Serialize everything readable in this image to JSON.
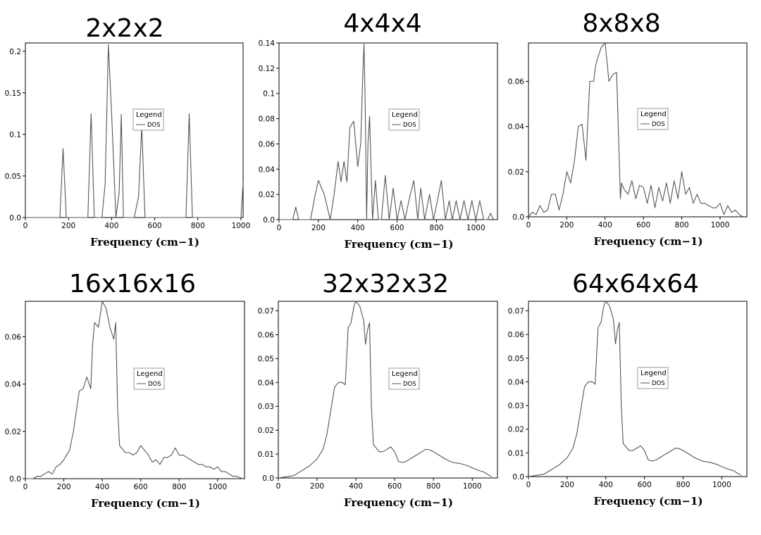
{
  "chart_data": [
    {
      "type": "line",
      "title": "2x2x2",
      "xlabel": "Frequency (cm−1)",
      "ylabel": "",
      "xlim": [
        0,
        1010
      ],
      "ylim": [
        0,
        0.21
      ],
      "xticks": [
        0,
        200,
        400,
        600,
        800,
        1000
      ],
      "yticks": [
        0.0,
        0.05,
        0.1,
        0.15,
        0.2
      ],
      "ytick_labels": [
        "0.0",
        "0.05",
        "0.1",
        "0.15",
        "0.2"
      ],
      "legend": {
        "title": "Legend",
        "entries": [
          "DOS"
        ],
        "position": "center-right"
      },
      "series": [
        {
          "name": "DOS",
          "x": [
            0,
            160,
            175,
            190,
            290,
            305,
            320,
            355,
            370,
            385,
            400,
            420,
            435,
            445,
            455,
            505,
            525,
            540,
            555,
            745,
            760,
            775,
            1000,
            1010
          ],
          "y": [
            0,
            0,
            0.083,
            0,
            0,
            0.125,
            0,
            0,
            0.04,
            0.208,
            0.125,
            0,
            0.03,
            0.124,
            0,
            0,
            0.025,
            0.11,
            0,
            0,
            0.125,
            0,
            0,
            0.042
          ]
        }
      ]
    },
    {
      "type": "line",
      "title": "4x4x4",
      "xlabel": "Frequency (cm−1)",
      "ylabel": "",
      "xlim": [
        0,
        1110
      ],
      "ylim": [
        0,
        0.14
      ],
      "xticks": [
        0,
        200,
        400,
        600,
        800,
        1000
      ],
      "yticks": [
        0,
        0.02,
        0.04,
        0.06,
        0.08,
        0.1,
        0.12,
        0.14
      ],
      "ytick_labels": [
        "0.0",
        "0.02",
        "0.04",
        "0.06",
        "0.08",
        "0.1",
        "0.12",
        "0.14"
      ],
      "legend": {
        "title": "Legend",
        "entries": [
          "DOS"
        ],
        "position": "center-right"
      },
      "series": [
        {
          "name": "DOS",
          "x": [
            0,
            70,
            85,
            100,
            160,
            180,
            200,
            230,
            245,
            260,
            280,
            300,
            315,
            330,
            345,
            360,
            380,
            400,
            415,
            425,
            432,
            438,
            445,
            452,
            460,
            475,
            490,
            505,
            520,
            540,
            560,
            580,
            600,
            620,
            640,
            660,
            685,
            705,
            720,
            740,
            765,
            785,
            805,
            825,
            845,
            865,
            880,
            900,
            920,
            940,
            960,
            980,
            1000,
            1020,
            1040,
            1060,
            1075,
            1090
          ],
          "y": [
            0,
            0,
            0.01,
            0,
            0,
            0.017,
            0.031,
            0.02,
            0.01,
            0,
            0.02,
            0.046,
            0.03,
            0.046,
            0.03,
            0.073,
            0.078,
            0.042,
            0.06,
            0.112,
            0.14,
            0.09,
            0,
            0.06,
            0.082,
            0,
            0.031,
            0,
            0,
            0.035,
            0,
            0.025,
            0,
            0.015,
            0,
            0.015,
            0.031,
            0,
            0.025,
            0,
            0.02,
            0,
            0.015,
            0.031,
            0,
            0.015,
            0,
            0.015,
            0,
            0.015,
            0,
            0.015,
            0,
            0.015,
            0,
            0,
            0.005,
            0
          ]
        }
      ]
    },
    {
      "type": "line",
      "title": "8x8x8",
      "xlabel": "Frequency (cm−1)",
      "ylabel": "",
      "xlim": [
        0,
        1140
      ],
      "ylim": [
        0,
        0.077
      ],
      "xticks": [
        0,
        200,
        400,
        600,
        800,
        1000
      ],
      "yticks": [
        0,
        0.02,
        0.04,
        0.06
      ],
      "ytick_labels": [
        "0.0",
        "0.02",
        "0.04",
        "0.06"
      ],
      "legend": {
        "title": "Legend",
        "entries": [
          "DOS"
        ],
        "position": "center-right"
      },
      "series": [
        {
          "name": "DOS",
          "x": [
            0,
            20,
            40,
            60,
            80,
            100,
            120,
            140,
            160,
            180,
            200,
            220,
            240,
            260,
            280,
            300,
            320,
            340,
            350,
            360,
            380,
            400,
            420,
            440,
            460,
            480,
            485,
            500,
            520,
            540,
            560,
            580,
            600,
            620,
            640,
            660,
            680,
            700,
            720,
            740,
            760,
            780,
            800,
            820,
            840,
            860,
            880,
            900,
            920,
            940,
            960,
            980,
            1000,
            1020,
            1040,
            1060,
            1080,
            1100,
            1120
          ],
          "y": [
            0,
            0.002,
            0.001,
            0.005,
            0.002,
            0.003,
            0.01,
            0.01,
            0.003,
            0.01,
            0.02,
            0.015,
            0.025,
            0.04,
            0.041,
            0.025,
            0.06,
            0.06,
            0.067,
            0.07,
            0.075,
            0.077,
            0.06,
            0.063,
            0.064,
            0.008,
            0.015,
            0.012,
            0.01,
            0.016,
            0.008,
            0.014,
            0.013,
            0.006,
            0.014,
            0.004,
            0.013,
            0.007,
            0.015,
            0.006,
            0.016,
            0.008,
            0.02,
            0.01,
            0.013,
            0.006,
            0.01,
            0.006,
            0.006,
            0.005,
            0.004,
            0.004,
            0.006,
            0.001,
            0.005,
            0.002,
            0.003,
            0.001,
            0
          ]
        }
      ]
    },
    {
      "type": "line",
      "title": "16x16x16",
      "xlabel": "Frequency (cm−1)",
      "ylabel": "",
      "xlim": [
        0,
        1140
      ],
      "ylim": [
        0,
        0.075
      ],
      "xticks": [
        0,
        200,
        400,
        600,
        800,
        1000
      ],
      "yticks": [
        0,
        0.02,
        0.04,
        0.06
      ],
      "ytick_labels": [
        "0.0",
        "0.02",
        "0.04",
        "0.06"
      ],
      "legend": {
        "title": "Legend",
        "entries": [
          "DOS"
        ],
        "position": "center-right"
      },
      "series": [
        {
          "name": "DOS",
          "x": [
            0,
            40,
            60,
            80,
            100,
            120,
            140,
            160,
            180,
            200,
            230,
            250,
            280,
            300,
            320,
            340,
            350,
            360,
            380,
            400,
            420,
            440,
            460,
            470,
            480,
            490,
            520,
            540,
            560,
            580,
            600,
            620,
            640,
            660,
            680,
            700,
            720,
            740,
            760,
            780,
            800,
            820,
            840,
            860,
            880,
            900,
            920,
            940,
            960,
            980,
            1000,
            1020,
            1040,
            1060,
            1080,
            1100,
            1130
          ],
          "y": [
            0,
            0,
            0.001,
            0.001,
            0.002,
            0.003,
            0.002,
            0.005,
            0.006,
            0.008,
            0.012,
            0.02,
            0.037,
            0.038,
            0.043,
            0.038,
            0.057,
            0.066,
            0.064,
            0.075,
            0.072,
            0.064,
            0.059,
            0.066,
            0.03,
            0.014,
            0.011,
            0.011,
            0.01,
            0.011,
            0.014,
            0.012,
            0.01,
            0.007,
            0.008,
            0.006,
            0.009,
            0.009,
            0.01,
            0.013,
            0.01,
            0.01,
            0.009,
            0.008,
            0.007,
            0.006,
            0.006,
            0.005,
            0.005,
            0.004,
            0.005,
            0.003,
            0.003,
            0.002,
            0.001,
            0.001,
            0
          ]
        }
      ]
    },
    {
      "type": "line",
      "title": "32x32x32",
      "xlabel": "Frequency (cm−1)",
      "ylabel": "",
      "xlim": [
        0,
        1130
      ],
      "ylim": [
        0,
        0.074
      ],
      "xticks": [
        0,
        200,
        400,
        600,
        800,
        1000
      ],
      "yticks": [
        0,
        0.01,
        0.02,
        0.03,
        0.04,
        0.05,
        0.06,
        0.07
      ],
      "ytick_labels": [
        "0.0",
        "0.01",
        "0.02",
        "0.03",
        "0.04",
        "0.05",
        "0.06",
        "0.07"
      ],
      "legend": {
        "title": "Legend",
        "entries": [
          "DOS"
        ],
        "position": "center-right"
      },
      "series": [
        {
          "name": "DOS",
          "x": [
            0,
            40,
            80,
            120,
            160,
            200,
            230,
            250,
            270,
            290,
            310,
            330,
            345,
            360,
            375,
            390,
            400,
            420,
            440,
            450,
            460,
            470,
            480,
            490,
            520,
            540,
            560,
            580,
            600,
            620,
            640,
            660,
            680,
            700,
            720,
            740,
            760,
            780,
            800,
            820,
            860,
            900,
            940,
            980,
            1020,
            1060,
            1100
          ],
          "y": [
            0,
            0.0005,
            0.001,
            0.003,
            0.005,
            0.008,
            0.012,
            0.018,
            0.028,
            0.038,
            0.04,
            0.04,
            0.039,
            0.063,
            0.065,
            0.072,
            0.074,
            0.072,
            0.066,
            0.056,
            0.062,
            0.065,
            0.03,
            0.014,
            0.011,
            0.011,
            0.012,
            0.013,
            0.011,
            0.007,
            0.0065,
            0.007,
            0.008,
            0.009,
            0.01,
            0.011,
            0.012,
            0.0118,
            0.011,
            0.01,
            0.008,
            0.0065,
            0.006,
            0.005,
            0.0035,
            0.0025,
            0.0005
          ]
        }
      ]
    },
    {
      "type": "line",
      "title": "64x64x64",
      "xlabel": "Frequency (cm−1)",
      "ylabel": "",
      "xlim": [
        0,
        1130
      ],
      "ylim": [
        0,
        0.074
      ],
      "xticks": [
        0,
        200,
        400,
        600,
        800,
        1000
      ],
      "yticks": [
        0,
        0.01,
        0.02,
        0.03,
        0.04,
        0.05,
        0.06,
        0.07
      ],
      "ytick_labels": [
        "0.0",
        "0.01",
        "0.02",
        "0.03",
        "0.04",
        "0.05",
        "0.06",
        "0.07"
      ],
      "legend": {
        "title": "Legend",
        "entries": [
          "DOS"
        ],
        "position": "center-right"
      },
      "series": [
        {
          "name": "DOS",
          "x": [
            0,
            40,
            80,
            120,
            160,
            200,
            230,
            250,
            270,
            290,
            310,
            330,
            345,
            360,
            375,
            390,
            400,
            420,
            440,
            450,
            460,
            470,
            480,
            490,
            520,
            540,
            560,
            580,
            600,
            620,
            640,
            660,
            680,
            700,
            720,
            740,
            760,
            780,
            800,
            820,
            860,
            900,
            940,
            980,
            1020,
            1060,
            1100
          ],
          "y": [
            0,
            0.0005,
            0.001,
            0.003,
            0.005,
            0.008,
            0.012,
            0.018,
            0.028,
            0.038,
            0.04,
            0.04,
            0.039,
            0.063,
            0.065,
            0.072,
            0.074,
            0.072,
            0.066,
            0.056,
            0.062,
            0.065,
            0.03,
            0.014,
            0.011,
            0.011,
            0.012,
            0.013,
            0.011,
            0.007,
            0.0065,
            0.007,
            0.008,
            0.009,
            0.01,
            0.011,
            0.012,
            0.0118,
            0.011,
            0.01,
            0.008,
            0.0065,
            0.006,
            0.005,
            0.0035,
            0.0025,
            0.0005
          ]
        }
      ]
    }
  ]
}
